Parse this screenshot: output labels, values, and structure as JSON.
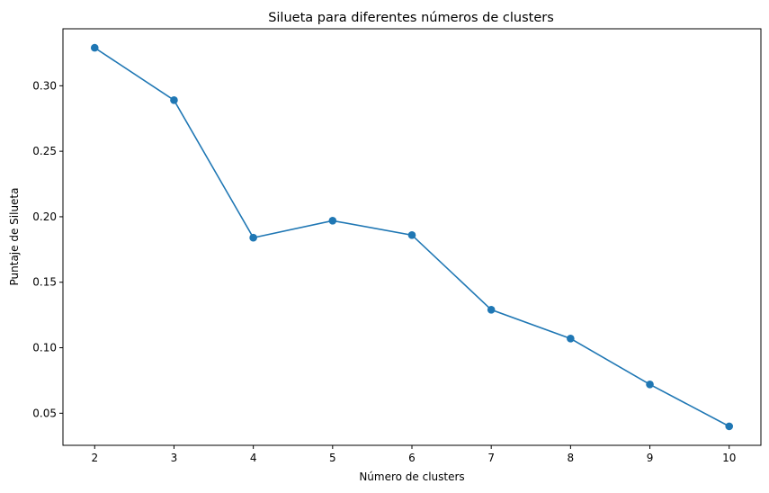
{
  "chart_data": {
    "type": "line",
    "title": "Silueta para diferentes números de clusters",
    "xlabel": "Número de clusters",
    "ylabel": "Puntaje de Silueta",
    "x": [
      2,
      3,
      4,
      5,
      6,
      7,
      8,
      9,
      10
    ],
    "series": [
      {
        "values": [
          0.329,
          0.289,
          0.184,
          0.197,
          0.186,
          0.129,
          0.107,
          0.072,
          0.04
        ],
        "color": "#1f77b4",
        "marker": "circle"
      }
    ],
    "xlim": [
      1.6,
      10.4
    ],
    "ylim": [
      0.0255,
      0.3435
    ],
    "xticks": [
      2,
      3,
      4,
      5,
      6,
      7,
      8,
      9,
      10
    ],
    "yticks": [
      0.05,
      0.1,
      0.15,
      0.2,
      0.25,
      0.3
    ],
    "ytick_labels": [
      "0.05",
      "0.10",
      "0.15",
      "0.20",
      "0.25",
      "0.30"
    ],
    "grid": false,
    "legend": "none"
  }
}
